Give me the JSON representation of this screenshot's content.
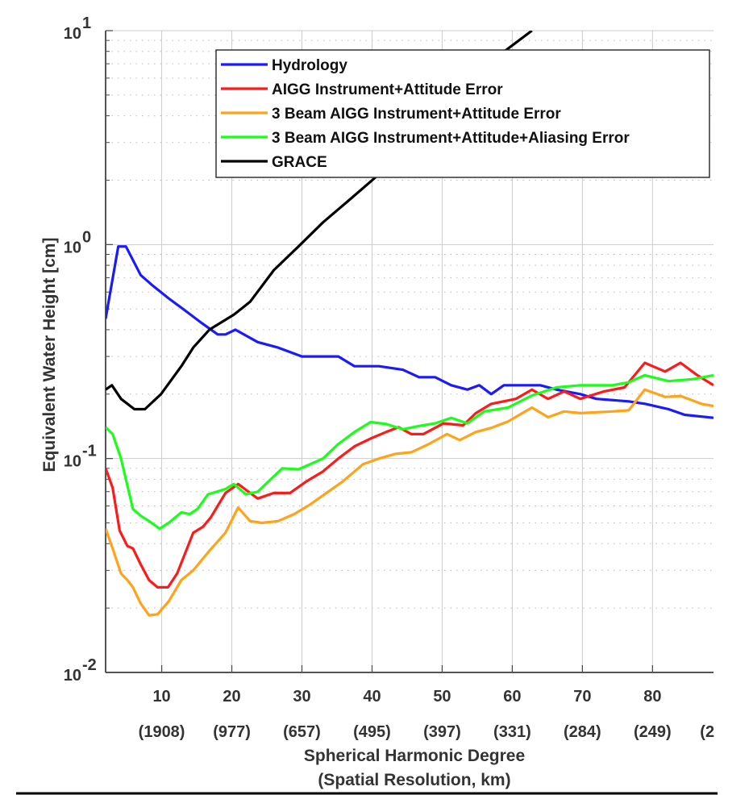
{
  "chart_data": {
    "type": "line",
    "title": "",
    "xlabel": "Spherical Harmonic Degree",
    "xlabel2": "(Spatial Resolution, km)",
    "ylabel": "Equivalent Water Height [cm]",
    "xlim": [
      2,
      88.7
    ],
    "ylim": [
      0.01,
      10
    ],
    "yscale": "log",
    "grid": true,
    "legend_position": "top-right",
    "x_ticks": [
      10,
      20,
      30,
      40,
      50,
      60,
      70,
      80
    ],
    "x_tick_labels": [
      "10",
      "20",
      "30",
      "40",
      "50",
      "60",
      "70",
      "80"
    ],
    "x_secondary_labels": [
      "(1908)",
      "(977)",
      "(657)",
      "(495)",
      "(397)",
      "(331)",
      "(284)",
      "(249)",
      "(2"
    ],
    "y_ticks": [
      {
        "base": "10",
        "exp": "1",
        "value": 10
      },
      {
        "base": "10",
        "exp": "0",
        "value": 1
      },
      {
        "base": "10",
        "exp": "-1",
        "value": 0.1
      },
      {
        "base": "10",
        "exp": "-2",
        "value": 0.01
      }
    ],
    "series": [
      {
        "name": "Hydrology",
        "color": "#1a1aff",
        "x": [
          2,
          3.8,
          4.9,
          7,
          8.8,
          11,
          13.4,
          15.7,
          18,
          19.1,
          20.5,
          23.7,
          26.6,
          30,
          33,
          35.2,
          37.5,
          41,
          44.4,
          46.7,
          49,
          51.3,
          53.6,
          55.3,
          57,
          58.8,
          61.7,
          64,
          66.3,
          69.7,
          72,
          76.6,
          79,
          82.3,
          84.6,
          88.7
        ],
        "y": [
          0.45,
          0.98,
          0.98,
          0.72,
          0.64,
          0.56,
          0.49,
          0.43,
          0.38,
          0.38,
          0.4,
          0.35,
          0.33,
          0.3,
          0.3,
          0.3,
          0.27,
          0.27,
          0.26,
          0.24,
          0.24,
          0.22,
          0.21,
          0.22,
          0.2,
          0.22,
          0.22,
          0.22,
          0.21,
          0.2,
          0.19,
          0.185,
          0.18,
          0.17,
          0.16,
          0.155
        ]
      },
      {
        "name": "AIGG Instrument+Attitude Error",
        "color": "#ff1a1a",
        "x": [
          2,
          3,
          4,
          5.1,
          5.9,
          7,
          8.2,
          9.4,
          10.9,
          12.2,
          14.5,
          15.9,
          17,
          19.1,
          20.9,
          22.6,
          23.7,
          26,
          28.3,
          30.6,
          33,
          35.2,
          37.5,
          39.8,
          42,
          43.8,
          45.6,
          47.3,
          50.2,
          53,
          54.8,
          57,
          60.5,
          62.8,
          65.1,
          67.4,
          69.7,
          73.1,
          76,
          78.9,
          81.8,
          84,
          86.4,
          88.7
        ],
        "y": [
          0.09,
          0.073,
          0.046,
          0.039,
          0.038,
          0.032,
          0.027,
          0.025,
          0.025,
          0.029,
          0.045,
          0.048,
          0.053,
          0.069,
          0.076,
          0.069,
          0.065,
          0.069,
          0.069,
          0.078,
          0.087,
          0.1,
          0.114,
          0.124,
          0.133,
          0.14,
          0.13,
          0.13,
          0.146,
          0.143,
          0.163,
          0.18,
          0.19,
          0.21,
          0.19,
          0.206,
          0.19,
          0.206,
          0.215,
          0.28,
          0.255,
          0.28,
          0.245,
          0.22
        ]
      },
      {
        "name": "3 Beam AIGG Instrument+Attitude Error",
        "color": "#ffa31a",
        "x": [
          2,
          3,
          4.2,
          5.1,
          5.9,
          7,
          8.2,
          9.4,
          11,
          12.8,
          14.5,
          16.8,
          19.1,
          20.9,
          22.6,
          24.3,
          26.6,
          28.9,
          31.2,
          33.5,
          35.8,
          38.7,
          41,
          43.3,
          45.6,
          47.9,
          50.7,
          52.5,
          54.8,
          57,
          59.4,
          62.8,
          65.1,
          67.4,
          69.7,
          74.3,
          76.6,
          78.9,
          81.8,
          84,
          87,
          88.7
        ],
        "y": [
          0.047,
          0.038,
          0.029,
          0.027,
          0.025,
          0.021,
          0.0185,
          0.0187,
          0.0215,
          0.027,
          0.03,
          0.037,
          0.045,
          0.059,
          0.051,
          0.05,
          0.051,
          0.055,
          0.061,
          0.069,
          0.078,
          0.094,
          0.1,
          0.105,
          0.107,
          0.116,
          0.13,
          0.122,
          0.133,
          0.139,
          0.149,
          0.173,
          0.156,
          0.166,
          0.163,
          0.166,
          0.168,
          0.21,
          0.194,
          0.196,
          0.18,
          0.176
        ]
      },
      {
        "name": "3 Beam AIGG Instrument+Attitude+Aliasing Error",
        "color": "#1aff1a",
        "x": [
          2,
          3,
          4.2,
          5.9,
          7,
          8.2,
          9.7,
          11,
          12.8,
          14,
          15.1,
          16.6,
          19.1,
          20.3,
          22,
          23.7,
          27.2,
          29.5,
          33,
          35.2,
          37.5,
          39.8,
          42,
          44.4,
          46.7,
          49,
          51.3,
          53.6,
          56,
          59.4,
          62.8,
          66.3,
          69.7,
          74.3,
          76.6,
          78.9,
          82.3,
          85.8,
          88.7
        ],
        "y": [
          0.14,
          0.13,
          0.1,
          0.058,
          0.054,
          0.051,
          0.047,
          0.05,
          0.056,
          0.055,
          0.058,
          0.068,
          0.072,
          0.076,
          0.068,
          0.07,
          0.09,
          0.089,
          0.1,
          0.117,
          0.133,
          0.148,
          0.145,
          0.137,
          0.142,
          0.146,
          0.155,
          0.146,
          0.166,
          0.173,
          0.197,
          0.215,
          0.22,
          0.22,
          0.227,
          0.245,
          0.23,
          0.235,
          0.245
        ]
      },
      {
        "name": "GRACE",
        "color": "#000000",
        "x": [
          2,
          2.9,
          4.2,
          6.1,
          7.6,
          9.9,
          12.8,
          14.5,
          16.8,
          20.3,
          22.6,
          26,
          29.5,
          33,
          36.4,
          39.8,
          44.4,
          49,
          53.6,
          58.2,
          62.8
        ],
        "y": [
          0.21,
          0.22,
          0.19,
          0.17,
          0.17,
          0.2,
          0.27,
          0.33,
          0.4,
          0.47,
          0.54,
          0.76,
          0.98,
          1.27,
          1.58,
          1.97,
          2.67,
          3.78,
          5.35,
          7.7,
          10
        ]
      }
    ]
  }
}
